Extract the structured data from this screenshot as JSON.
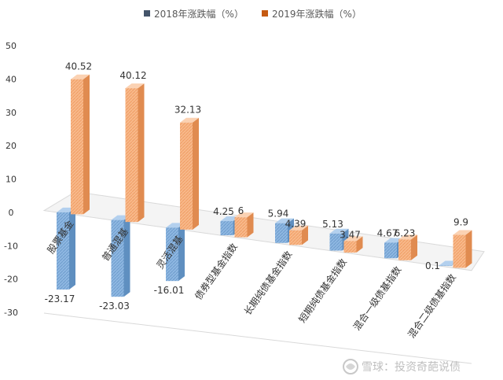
{
  "watermark": "雪球：投资奇葩说债",
  "chart_data": {
    "type": "bar",
    "categories": [
      "股票基金",
      "普通混基",
      "灵活混基",
      "债券型基金指数",
      "长期纯债基金指数",
      "短期纯债基金指数",
      "混合一级债基指数",
      "混合二级债基指数"
    ],
    "series": [
      {
        "name": "2018年涨跌幅（%）",
        "values": [
          -23.17,
          -23.03,
          -16.01,
          4.25,
          5.94,
          5.13,
          4.67,
          0.1
        ],
        "color": "#7aa9d8"
      },
      {
        "name": "2019年涨跌幅（%）",
        "values": [
          40.52,
          40.12,
          32.13,
          6,
          4.39,
          3.47,
          6.23,
          9.9
        ],
        "color": "#f6ad7a"
      }
    ],
    "data_labels": [
      [
        "-23.17",
        "-23.03",
        "-16.01",
        "4.25",
        "5.94",
        "5.13",
        "4.67",
        "0.1"
      ],
      [
        "40.52",
        "40.12",
        "32.13",
        "6",
        "4.39",
        "3.47",
        "6.23",
        "9.9"
      ]
    ],
    "yticks": [
      "50",
      "40",
      "30",
      "20",
      "10",
      "0",
      "-10",
      "-20",
      "-30"
    ],
    "ylim": [
      -30,
      50
    ],
    "grid": false,
    "legend_position": "top",
    "legend_icon_colors": [
      "#44546a",
      "#c55a11"
    ]
  }
}
